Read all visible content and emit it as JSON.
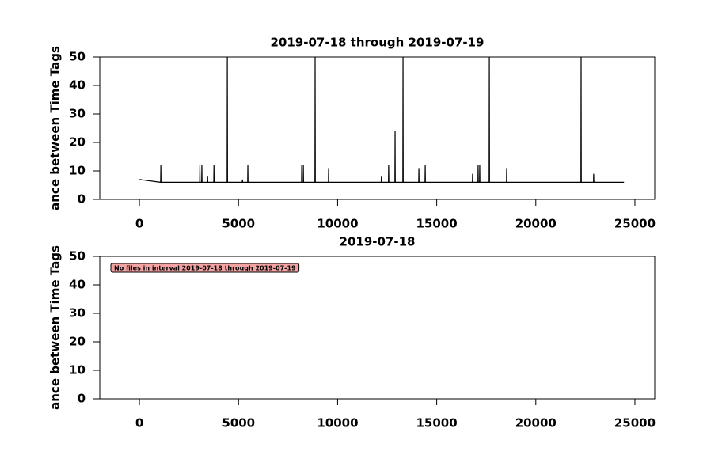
{
  "chart_data": [
    {
      "type": "line",
      "title": "2019-07-18 through 2019-07-19",
      "ylabel": "ance between Time Tags",
      "xlim": [
        -2000,
        26000
      ],
      "ylim": [
        0,
        50
      ],
      "xticks": [
        0,
        5000,
        10000,
        15000,
        20000,
        25000
      ],
      "yticks": [
        0,
        10,
        20,
        30,
        40,
        50
      ],
      "color": "#000000",
      "x": [
        0,
        1070,
        1080,
        1090,
        3040,
        3050,
        3060,
        3140,
        3150,
        3160,
        3430,
        3440,
        3450,
        3750,
        3760,
        3770,
        4425,
        4435,
        4445,
        5190,
        5200,
        5210,
        5460,
        5470,
        5480,
        8180,
        8190,
        8200,
        8260,
        8270,
        8280,
        8855,
        8865,
        8875,
        9535,
        9545,
        9555,
        12200,
        12210,
        12220,
        12565,
        12575,
        12585,
        12890,
        12900,
        12910,
        13290,
        13300,
        13310,
        14090,
        14100,
        14110,
        14410,
        14420,
        14430,
        16800,
        16810,
        16820,
        17080,
        17090,
        17100,
        17160,
        17170,
        17180,
        17645,
        17655,
        17665,
        18520,
        18530,
        18540,
        22275,
        22285,
        22295,
        22910,
        22920,
        22930,
        24450
      ],
      "values": [
        7,
        6,
        12,
        6,
        6,
        12,
        6,
        6,
        12,
        6,
        6,
        8,
        6,
        6,
        12,
        6,
        6,
        50,
        6,
        6,
        7,
        6,
        6,
        12,
        6,
        6,
        12,
        6,
        6,
        12,
        6,
        6,
        50,
        6,
        6,
        11,
        6,
        6,
        8,
        6,
        6,
        12,
        6,
        6,
        24,
        6,
        6,
        50,
        6,
        6,
        11,
        6,
        6,
        12,
        6,
        6,
        9,
        6,
        6,
        12,
        6,
        6,
        12,
        6,
        6,
        50,
        6,
        6,
        11,
        6,
        6,
        50,
        6,
        6,
        9,
        6,
        6
      ]
    },
    {
      "type": "line",
      "title": "2019-07-18",
      "ylabel": "ance between Time Tags",
      "xlim": [
        -2000,
        26000
      ],
      "ylim": [
        0,
        50
      ],
      "xticks": [
        0,
        5000,
        10000,
        15000,
        20000,
        25000
      ],
      "yticks": [
        0,
        10,
        20,
        30,
        40,
        50
      ],
      "color": "#000000",
      "x": [],
      "values": [],
      "annotation": "No files in interval 2019-07-18 through 2019-07-19"
    }
  ]
}
